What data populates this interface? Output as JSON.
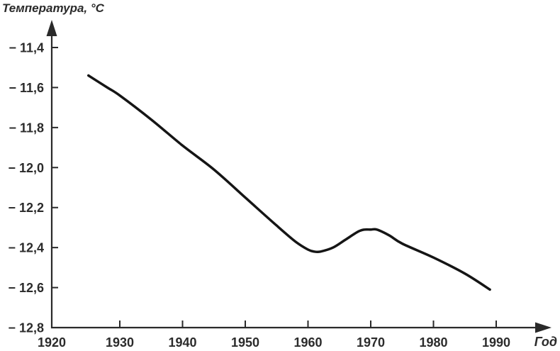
{
  "chart": {
    "y_axis_title": "Температура, °C",
    "x_axis_title": "Год"
  },
  "chart_data": {
    "type": "line",
    "title": "",
    "xlabel": "Год",
    "ylabel": "Температура, °C",
    "grid": false,
    "legend": false,
    "xlim": [
      1920,
      1990
    ],
    "ylim": [
      -12.8,
      -11.4
    ],
    "x_tick_values": [
      1920,
      1930,
      1940,
      1950,
      1960,
      1970,
      1980,
      1990
    ],
    "x_tick_labels": [
      "1920",
      "1930",
      "1940",
      "1950",
      "1960",
      "1970",
      "1980",
      "1990"
    ],
    "y_tick_values": [
      -11.4,
      -11.6,
      -11.8,
      -12.0,
      -12.2,
      -12.4,
      -12.6,
      -12.8
    ],
    "y_tick_labels": [
      "− 11,4",
      "− 11,6",
      "− 11,8",
      "− 12,0",
      "− 12,2",
      "− 12,4",
      "− 12,6",
      "− 12,8"
    ],
    "line_color": "#151515",
    "axis_color": "#2a2a2a",
    "label_color": "#2b2b2b",
    "series": [
      {
        "points": [
          [
            1925,
            -11.54
          ],
          [
            1928,
            -11.6
          ],
          [
            1930,
            -11.64
          ],
          [
            1935,
            -11.76
          ],
          [
            1940,
            -11.89
          ],
          [
            1945,
            -12.01
          ],
          [
            1950,
            -12.15
          ],
          [
            1955,
            -12.29
          ],
          [
            1958,
            -12.37
          ],
          [
            1960,
            -12.41
          ],
          [
            1961,
            -12.42
          ],
          [
            1962,
            -12.42
          ],
          [
            1964,
            -12.4
          ],
          [
            1966,
            -12.36
          ],
          [
            1968,
            -12.32
          ],
          [
            1969,
            -12.31
          ],
          [
            1970,
            -12.31
          ],
          [
            1971,
            -12.31
          ],
          [
            1973,
            -12.34
          ],
          [
            1975,
            -12.38
          ],
          [
            1980,
            -12.45
          ],
          [
            1985,
            -12.53
          ],
          [
            1989,
            -12.61
          ]
        ]
      }
    ]
  }
}
